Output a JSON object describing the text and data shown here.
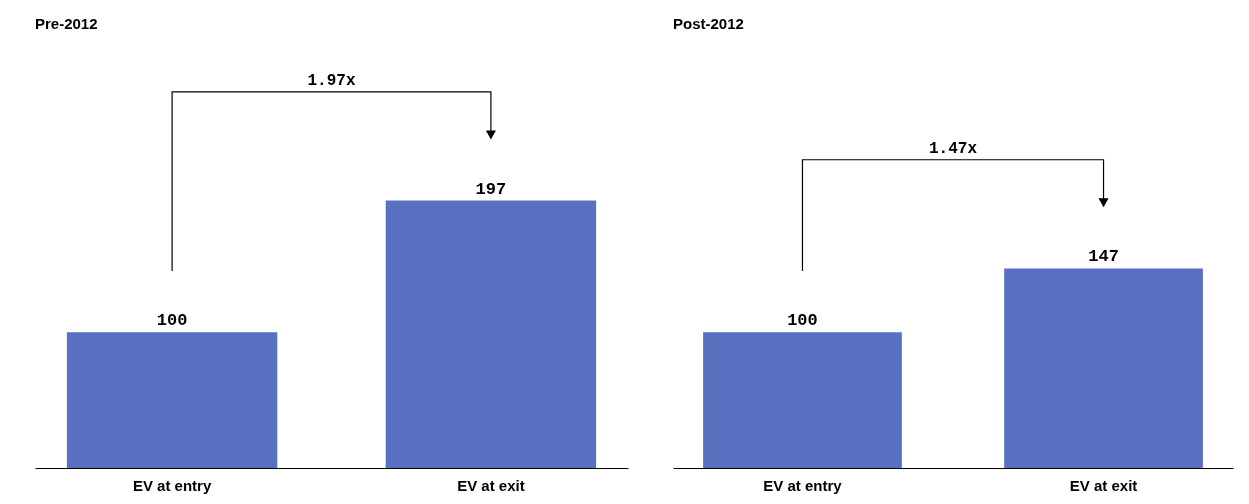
{
  "chart_data": [
    {
      "type": "bar",
      "title": "Pre-2012",
      "categories": [
        "EV at entry",
        "EV at exit"
      ],
      "values": [
        100,
        197
      ],
      "color": "#5870bf",
      "data_labels": true,
      "annotations": [
        "1.97x"
      ]
    },
    {
      "type": "bar",
      "title": "Post-2012",
      "categories": [
        "EV at entry",
        "EV at exit"
      ],
      "values": [
        100,
        147
      ],
      "color": "#5870bf",
      "data_labels": true,
      "annotations": [
        "1.47x"
      ]
    }
  ]
}
